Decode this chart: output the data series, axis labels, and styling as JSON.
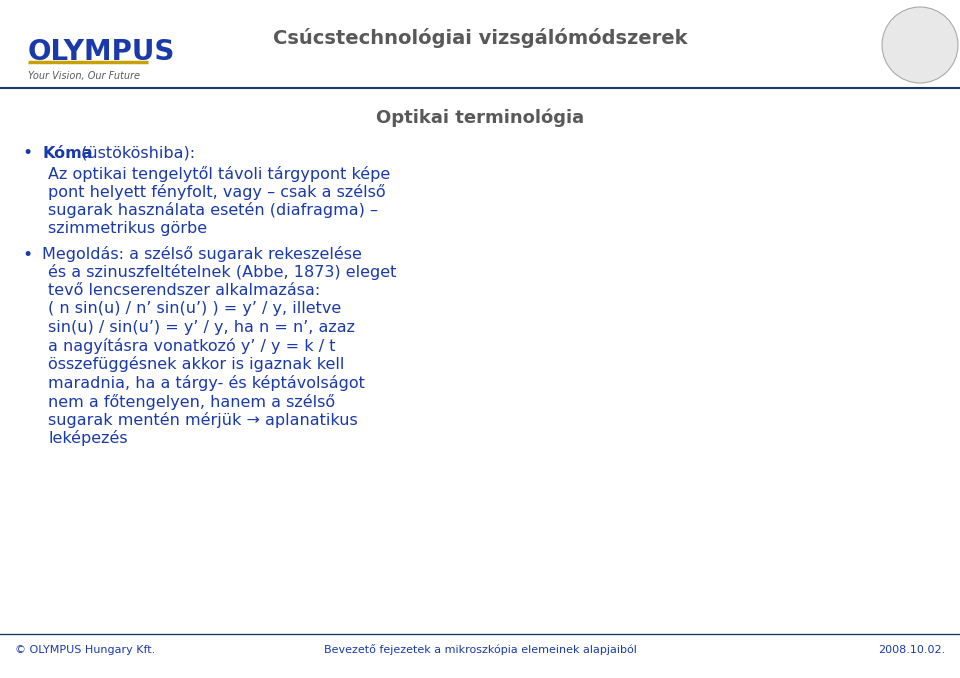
{
  "bg_color": "#ffffff",
  "title_text": "Csúcstechnológiai vizsgálómódszerek",
  "title_color": "#595959",
  "title_fontsize": 14,
  "slide_title": "Optikai terminológia",
  "slide_title_color": "#595959",
  "slide_title_fontsize": 13,
  "olympus_text": "OLYMPUS",
  "olympus_color": "#1a3aaa",
  "olympus_fontsize": 20,
  "tagline": "Your Vision, Our Future",
  "tagline_color": "#595959",
  "tagline_fontsize": 7,
  "body_color": "#1a3aaa",
  "body_fontsize": 11.5,
  "bullet1_bold": "Kóma",
  "bullet1_rest": " (üstököshiba):",
  "bullet_text_1_lines": [
    "Az optikai tengelytől távoli tárgypont képe",
    "pont helyett fényfolt, vagy – csak a szélső",
    "sugarak használata esetén (diafragma) –",
    "szimmetrikus görbe"
  ],
  "bullet_text_2_lines": [
    "Megoldás: a szélső sugarak rekeszelése",
    "és a szinuszfeltételnek (Abbe, 1873) eleget",
    "tevő lencserendszer alkalmazása:",
    "( n sin(u) / n’ sin(u’) ) = y’ / y, illetve",
    "sin(u) / sin(u’) = y’ / y, ha n = n’, azaz",
    "a nagyításra vonatkozó y’ / y = k / t",
    "összefüggésnek akkor is igaznak kell",
    "maradnia, ha a tárgy- és képtávolságot",
    "nem a főtengelyen, hanem a szélső",
    "sugarak mentén mérjük → aplanatikus",
    "leképezés"
  ],
  "footer_left": "© OLYMPUS Hungary Kft.",
  "footer_center": "Bevezető fejezetek a mikroszkópia elemeinek alapjaiból",
  "footer_right": "2008.10.02.",
  "footer_color": "#1a3aaa",
  "footer_fontsize": 8,
  "gold_color": "#c8a000",
  "navy_color": "#1a3a6b",
  "header_sep_color": "#1a3a6b",
  "footer_sep_color": "#1a3a6b"
}
